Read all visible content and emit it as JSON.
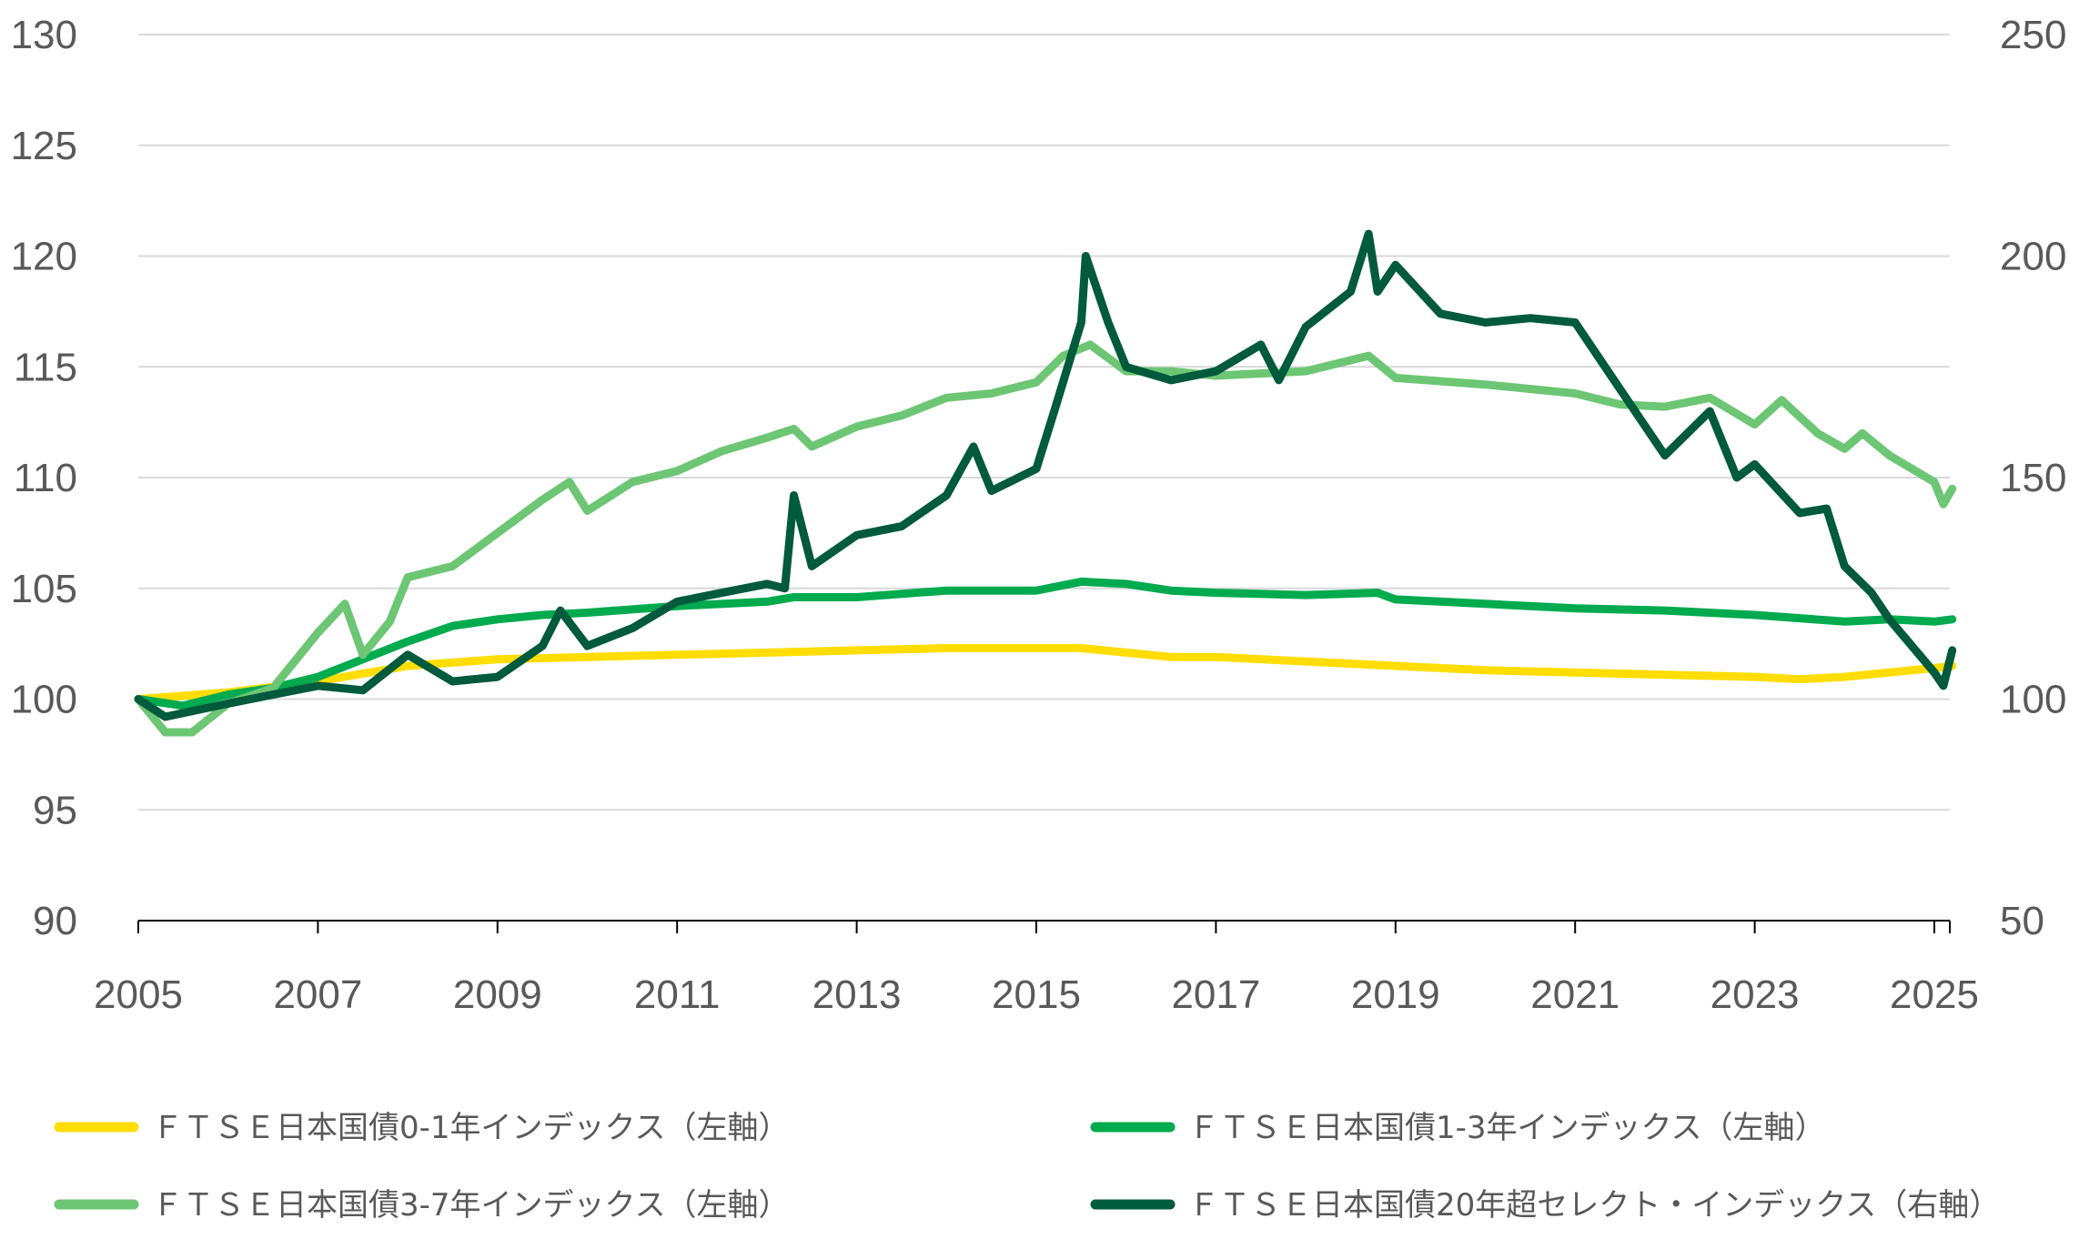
{
  "chart_data": {
    "type": "line",
    "title": "",
    "xlabel": "",
    "ylabel": "",
    "xlim": [
      2005,
      2025.2
    ],
    "ylim_left": [
      90,
      130
    ],
    "ylim_right": [
      50,
      250
    ],
    "grid": true,
    "legend_position": "bottom",
    "x_ticks": [
      "2005",
      "2007",
      "2009",
      "2011",
      "2013",
      "2015",
      "2017",
      "2019",
      "2021",
      "2023",
      "2025"
    ],
    "y_ticks_left": [
      "90",
      "95",
      "100",
      "105",
      "110",
      "115",
      "120",
      "125",
      "130"
    ],
    "y_ticks_right": [
      "50",
      "100",
      "150",
      "200",
      "250"
    ],
    "series": [
      {
        "name": "ＦＴＳＥ日本国債0-1年インデックス（左軸）",
        "axis": "left",
        "color": "#FFDD00",
        "points": [
          [
            2005,
            100
          ],
          [
            2006,
            100.3
          ],
          [
            2007,
            100.8
          ],
          [
            2008,
            101.5
          ],
          [
            2009,
            101.8
          ],
          [
            2010,
            101.9
          ],
          [
            2011,
            102.0
          ],
          [
            2012,
            102.1
          ],
          [
            2013,
            102.2
          ],
          [
            2014,
            102.3
          ],
          [
            2015,
            102.3
          ],
          [
            2015.5,
            102.3
          ],
          [
            2016,
            102.1
          ],
          [
            2016.5,
            101.9
          ],
          [
            2017,
            101.9
          ],
          [
            2018,
            101.7
          ],
          [
            2019,
            101.5
          ],
          [
            2020,
            101.3
          ],
          [
            2021,
            101.2
          ],
          [
            2022,
            101.1
          ],
          [
            2023,
            101.0
          ],
          [
            2023.5,
            100.9
          ],
          [
            2024,
            101.0
          ],
          [
            2025,
            101.4
          ],
          [
            2025.2,
            101.5
          ]
        ]
      },
      {
        "name": "ＦＴＳＥ日本国債1-3年インデックス（左軸）",
        "axis": "left",
        "color": "#00AA4F",
        "points": [
          [
            2005,
            100
          ],
          [
            2005.5,
            99.7
          ],
          [
            2006,
            100.2
          ],
          [
            2006.5,
            100.5
          ],
          [
            2007,
            101
          ],
          [
            2007.5,
            101.8
          ],
          [
            2008,
            102.6
          ],
          [
            2008.5,
            103.3
          ],
          [
            2009,
            103.6
          ],
          [
            2009.5,
            103.8
          ],
          [
            2010,
            103.9
          ],
          [
            2011,
            104.2
          ],
          [
            2012,
            104.4
          ],
          [
            2012.3,
            104.6
          ],
          [
            2013,
            104.6
          ],
          [
            2014,
            104.9
          ],
          [
            2014.5,
            104.9
          ],
          [
            2015,
            104.9
          ],
          [
            2015.5,
            105.3
          ],
          [
            2016,
            105.2
          ],
          [
            2016.5,
            104.9
          ],
          [
            2017,
            104.8
          ],
          [
            2018,
            104.7
          ],
          [
            2018.8,
            104.8
          ],
          [
            2019,
            104.5
          ],
          [
            2020,
            104.3
          ],
          [
            2021,
            104.1
          ],
          [
            2022,
            104.0
          ],
          [
            2023,
            103.8
          ],
          [
            2024,
            103.5
          ],
          [
            2024.5,
            103.6
          ],
          [
            2025,
            103.5
          ],
          [
            2025.2,
            103.6
          ]
        ]
      },
      {
        "name": "ＦＴＳＥ日本国債3-7年インデックス（左軸）",
        "axis": "left",
        "color": "#6CC674",
        "points": [
          [
            2005,
            100
          ],
          [
            2005.3,
            98.5
          ],
          [
            2005.6,
            98.5
          ],
          [
            2006,
            99.8
          ],
          [
            2006.5,
            100.5
          ],
          [
            2006.7,
            101.5
          ],
          [
            2007,
            103
          ],
          [
            2007.3,
            104.3
          ],
          [
            2007.5,
            102
          ],
          [
            2007.8,
            103.5
          ],
          [
            2008,
            105.5
          ],
          [
            2008.5,
            106
          ],
          [
            2009,
            107.5
          ],
          [
            2009.5,
            109
          ],
          [
            2009.8,
            109.8
          ],
          [
            2010,
            108.5
          ],
          [
            2010.5,
            109.8
          ],
          [
            2011,
            110.3
          ],
          [
            2011.5,
            111.2
          ],
          [
            2012,
            111.8
          ],
          [
            2012.3,
            112.2
          ],
          [
            2012.5,
            111.4
          ],
          [
            2013,
            112.3
          ],
          [
            2013.5,
            112.8
          ],
          [
            2014,
            113.6
          ],
          [
            2014.5,
            113.8
          ],
          [
            2015,
            114.3
          ],
          [
            2015.3,
            115.5
          ],
          [
            2015.6,
            116
          ],
          [
            2016,
            114.8
          ],
          [
            2016.5,
            114.8
          ],
          [
            2017,
            114.6
          ],
          [
            2018,
            114.8
          ],
          [
            2018.7,
            115.5
          ],
          [
            2019,
            114.5
          ],
          [
            2020,
            114.2
          ],
          [
            2021,
            113.8
          ],
          [
            2021.5,
            113.3
          ],
          [
            2022,
            113.2
          ],
          [
            2022.5,
            113.6
          ],
          [
            2023,
            112.4
          ],
          [
            2023.3,
            113.5
          ],
          [
            2023.7,
            112
          ],
          [
            2024,
            111.3
          ],
          [
            2024.2,
            112
          ],
          [
            2024.5,
            111
          ],
          [
            2025,
            109.8
          ],
          [
            2025.1,
            108.8
          ],
          [
            2025.2,
            109.5
          ]
        ]
      },
      {
        "name": "ＦＴＳＥ日本国債20年超セレクト・インデックス（右軸）",
        "axis": "right",
        "color": "#005A3C",
        "points": [
          [
            2005,
            100
          ],
          [
            2005.3,
            96
          ],
          [
            2006,
            99
          ],
          [
            2006.5,
            101
          ],
          [
            2007,
            103
          ],
          [
            2007.5,
            102
          ],
          [
            2008,
            110
          ],
          [
            2008.5,
            104
          ],
          [
            2009,
            105
          ],
          [
            2009.5,
            112
          ],
          [
            2009.7,
            120
          ],
          [
            2010,
            112
          ],
          [
            2010.5,
            116
          ],
          [
            2011,
            122
          ],
          [
            2011.5,
            124
          ],
          [
            2012,
            126
          ],
          [
            2012.2,
            125
          ],
          [
            2012.3,
            146
          ],
          [
            2012.5,
            130
          ],
          [
            2013,
            137
          ],
          [
            2013.5,
            139
          ],
          [
            2014,
            146
          ],
          [
            2014.3,
            157
          ],
          [
            2014.5,
            147
          ],
          [
            2015,
            152
          ],
          [
            2015.2,
            165
          ],
          [
            2015.5,
            185
          ],
          [
            2015.55,
            200
          ],
          [
            2015.8,
            185
          ],
          [
            2016,
            175
          ],
          [
            2016.5,
            172
          ],
          [
            2017,
            174
          ],
          [
            2017.5,
            180
          ],
          [
            2017.7,
            172
          ],
          [
            2018,
            184
          ],
          [
            2018.5,
            192
          ],
          [
            2018.7,
            205
          ],
          [
            2018.8,
            192
          ],
          [
            2019,
            198
          ],
          [
            2019.5,
            187
          ],
          [
            2020,
            185
          ],
          [
            2020.5,
            186
          ],
          [
            2021,
            185
          ],
          [
            2021.5,
            170
          ],
          [
            2022,
            155
          ],
          [
            2022.5,
            165
          ],
          [
            2022.8,
            150
          ],
          [
            2023,
            153
          ],
          [
            2023.5,
            142
          ],
          [
            2023.8,
            143
          ],
          [
            2024,
            130
          ],
          [
            2024.3,
            124
          ],
          [
            2024.5,
            118
          ],
          [
            2025,
            106
          ],
          [
            2025.1,
            103
          ],
          [
            2025.2,
            111
          ]
        ]
      }
    ]
  }
}
